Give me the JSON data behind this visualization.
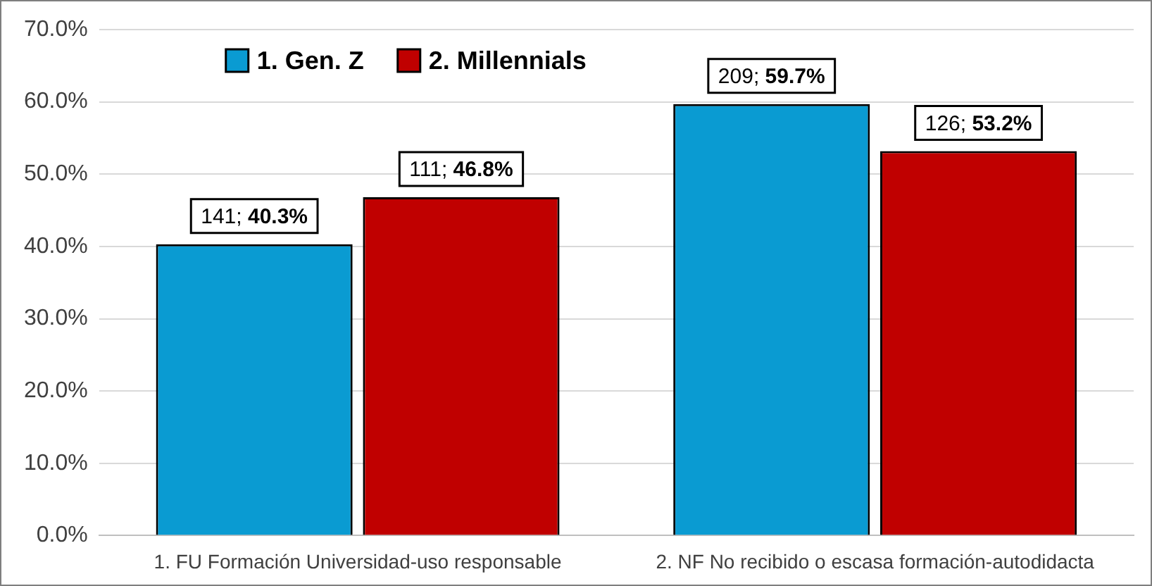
{
  "chart_data": {
    "type": "bar",
    "categories": [
      "1. FU Formación Universidad-uso responsable",
      "2. NF No recibido o escasa formación-autodidacta"
    ],
    "series": [
      {
        "name": "1. Gen. Z",
        "color": "#0a9bd2",
        "values": [
          40.3,
          59.7
        ],
        "value_labels": [
          "141; 40.3%",
          "209; 59.7%"
        ]
      },
      {
        "name": "2. Millennials",
        "color": "#c00000",
        "values": [
          46.8,
          53.2
        ],
        "value_labels": [
          "111; 46.8%",
          "126; 53.2%"
        ]
      }
    ],
    "ylim": [
      0,
      70
    ],
    "yticks": [
      {
        "value": 0,
        "label": "0.0%"
      },
      {
        "value": 10,
        "label": "10.0%"
      },
      {
        "value": 20,
        "label": "20.0%"
      },
      {
        "value": 30,
        "label": "30.0%"
      },
      {
        "value": 40,
        "label": "40.0%"
      },
      {
        "value": 50,
        "label": "50.0%"
      },
      {
        "value": 60,
        "label": "60.0%"
      },
      {
        "value": 70,
        "label": "70.0%"
      }
    ],
    "grid": "y",
    "legend": "top left"
  }
}
